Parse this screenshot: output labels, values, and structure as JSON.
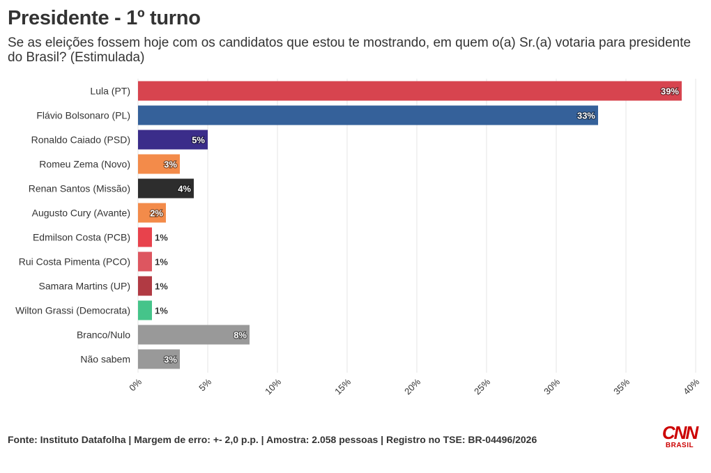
{
  "chart_data": {
    "type": "bar",
    "orientation": "horizontal",
    "title": "Presidente - 1º turno",
    "subtitle": "Se as eleições fossem hoje com os candidatos que estou te mostrando, em quem o(a) Sr.(a) votaria para presidente do Brasil? (Estimulada)",
    "categories": [
      "Lula (PT)",
      "Flávio Bolsonaro (PL)",
      "Ronaldo Caiado (PSD)",
      "Romeu Zema (Novo)",
      "Renan Santos (Missão)",
      "Augusto Cury (Avante)",
      "Edmilson Costa (PCB)",
      "Rui Costa Pimenta (PCO)",
      "Samara Martins (UP)",
      "Wilton Grassi (Democrata)",
      "Branco/Nulo",
      "Não sabem"
    ],
    "values": [
      39,
      33,
      5,
      3,
      4,
      2,
      1,
      1,
      1,
      1,
      8,
      3
    ],
    "value_labels": [
      "39%",
      "33%",
      "5%",
      "3%",
      "4%",
      "2%",
      "1%",
      "1%",
      "1%",
      "1%",
      "8%",
      "3%"
    ],
    "colors": [
      "#d7444f",
      "#35619a",
      "#3b2d8a",
      "#f38b4a",
      "#2d2d2d",
      "#f38b4a",
      "#e8424c",
      "#dd5660",
      "#b13a43",
      "#45c48a",
      "#999999",
      "#999999"
    ],
    "xlim": [
      0,
      40
    ],
    "xticks": [
      0,
      5,
      10,
      15,
      20,
      25,
      30,
      35,
      40
    ],
    "xtick_labels": [
      "0%",
      "5%",
      "10%",
      "15%",
      "20%",
      "25%",
      "30%",
      "35%",
      "40%"
    ],
    "grid": true,
    "xlabel": "",
    "ylabel": ""
  },
  "footer": {
    "source": "Fonte: Instituto Datafolha | Margem de erro: +- 2,0 p.p. | Amostra: 2.058 pessoas | Registro no TSE: BR-04496/2026"
  },
  "logo": {
    "text": "CNN",
    "sub": "BRASIL"
  }
}
